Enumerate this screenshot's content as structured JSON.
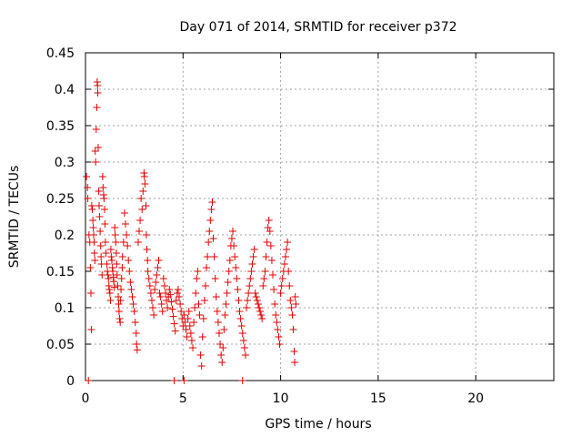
{
  "chart_data": {
    "type": "scatter",
    "title": "Day 071 of 2014, SRMTID for receiver p372",
    "xlabel": "GPS time / hours",
    "ylabel": "SRMTID / TECUs",
    "xlim": [
      0,
      24
    ],
    "ylim": [
      0,
      0.45
    ],
    "xticks": [
      0,
      5,
      10,
      15,
      20
    ],
    "yticks": [
      0,
      0.05,
      0.1,
      0.15,
      0.2,
      0.25,
      0.3,
      0.35,
      0.4,
      0.45
    ],
    "grid": true,
    "marker": "+",
    "color": "#e60000",
    "series": [
      {
        "name": "SRMTID",
        "points": [
          [
            0.05,
            0.28
          ],
          [
            0.1,
            0.265
          ],
          [
            0.12,
            0.25
          ],
          [
            0.18,
            0.2
          ],
          [
            0.22,
            0.19
          ],
          [
            0.25,
            0.155
          ],
          [
            0.28,
            0.12
          ],
          [
            0.3,
            0.07
          ],
          [
            0.32,
            0.24
          ],
          [
            0.35,
            0.235
          ],
          [
            0.38,
            0.22
          ],
          [
            0.4,
            0.21
          ],
          [
            0.42,
            0.2
          ],
          [
            0.44,
            0.19
          ],
          [
            0.46,
            0.175
          ],
          [
            0.48,
            0.165
          ],
          [
            0.5,
            0.315
          ],
          [
            0.52,
            0.3
          ],
          [
            0.55,
            0.345
          ],
          [
            0.58,
            0.375
          ],
          [
            0.6,
            0.41
          ],
          [
            0.62,
            0.405
          ],
          [
            0.63,
            0.395
          ],
          [
            0.65,
            0.32
          ],
          [
            0.68,
            0.26
          ],
          [
            0.7,
            0.24
          ],
          [
            0.72,
            0.225
          ],
          [
            0.75,
            0.205
          ],
          [
            0.78,
            0.185
          ],
          [
            0.8,
            0.17
          ],
          [
            0.82,
            0.16
          ],
          [
            0.85,
            0.145
          ],
          [
            0.88,
            0.28
          ],
          [
            0.9,
            0.265
          ],
          [
            0.93,
            0.255
          ],
          [
            0.95,
            0.25
          ],
          [
            0.98,
            0.235
          ],
          [
            1.0,
            0.215
          ],
          [
            1.02,
            0.19
          ],
          [
            1.05,
            0.175
          ],
          [
            1.1,
            0.16
          ],
          [
            1.12,
            0.15
          ],
          [
            1.15,
            0.145
          ],
          [
            1.18,
            0.14
          ],
          [
            1.2,
            0.13
          ],
          [
            1.22,
            0.125
          ],
          [
            1.25,
            0.12
          ],
          [
            1.28,
            0.11
          ],
          [
            1.3,
            0.18
          ],
          [
            1.32,
            0.17
          ],
          [
            1.35,
            0.165
          ],
          [
            1.38,
            0.155
          ],
          [
            1.4,
            0.15
          ],
          [
            1.42,
            0.142
          ],
          [
            1.45,
            0.136
          ],
          [
            1.48,
            0.128
          ],
          [
            1.5,
            0.21
          ],
          [
            1.52,
            0.2
          ],
          [
            1.55,
            0.19
          ],
          [
            1.58,
            0.175
          ],
          [
            1.6,
            0.16
          ],
          [
            1.62,
            0.145
          ],
          [
            1.65,
            0.13
          ],
          [
            1.68,
            0.115
          ],
          [
            1.7,
            0.105
          ],
          [
            1.72,
            0.095
          ],
          [
            1.75,
            0.085
          ],
          [
            1.78,
            0.08
          ],
          [
            1.8,
            0.11
          ],
          [
            1.82,
            0.125
          ],
          [
            1.85,
            0.14
          ],
          [
            1.88,
            0.155
          ],
          [
            1.9,
            0.17
          ],
          [
            1.95,
            0.19
          ],
          [
            2.0,
            0.23
          ],
          [
            2.05,
            0.215
          ],
          [
            2.1,
            0.2
          ],
          [
            2.15,
            0.185
          ],
          [
            2.2,
            0.165
          ],
          [
            2.25,
            0.15
          ],
          [
            2.3,
            0.135
          ],
          [
            2.35,
            0.125
          ],
          [
            2.4,
            0.115
          ],
          [
            2.45,
            0.105
          ],
          [
            2.5,
            0.095
          ],
          [
            2.55,
            0.08
          ],
          [
            2.6,
            0.065
          ],
          [
            2.62,
            0.05
          ],
          [
            2.65,
            0.042
          ],
          [
            2.7,
            0.19
          ],
          [
            2.75,
            0.205
          ],
          [
            2.8,
            0.22
          ],
          [
            2.85,
            0.25
          ],
          [
            2.9,
            0.235
          ],
          [
            2.95,
            0.26
          ],
          [
            3.0,
            0.285
          ],
          [
            3.02,
            0.28
          ],
          [
            3.05,
            0.27
          ],
          [
            3.1,
            0.24
          ],
          [
            3.12,
            0.2
          ],
          [
            3.15,
            0.18
          ],
          [
            3.18,
            0.165
          ],
          [
            3.2,
            0.15
          ],
          [
            3.25,
            0.14
          ],
          [
            3.3,
            0.13
          ],
          [
            3.35,
            0.12
          ],
          [
            3.4,
            0.11
          ],
          [
            3.45,
            0.1
          ],
          [
            3.5,
            0.09
          ],
          [
            3.55,
            0.125
          ],
          [
            3.6,
            0.135
          ],
          [
            3.65,
            0.145
          ],
          [
            3.7,
            0.155
          ],
          [
            3.75,
            0.165
          ],
          [
            3.8,
            0.12
          ],
          [
            3.85,
            0.115
          ],
          [
            3.9,
            0.105
          ],
          [
            3.95,
            0.095
          ],
          [
            4.0,
            0.14
          ],
          [
            4.05,
            0.13
          ],
          [
            4.1,
            0.12
          ],
          [
            4.15,
            0.11
          ],
          [
            4.2,
            0.1
          ],
          [
            4.25,
            0.115
          ],
          [
            4.3,
            0.125
          ],
          [
            4.35,
            0.118
          ],
          [
            4.4,
            0.108
          ],
          [
            4.45,
            0.098
          ],
          [
            4.5,
            0.088
          ],
          [
            4.55,
            0.078
          ],
          [
            4.6,
            0.068
          ],
          [
            4.65,
            0.11
          ],
          [
            4.7,
            0.12
          ],
          [
            4.75,
            0.125
          ],
          [
            4.8,
            0.115
          ],
          [
            4.85,
            0.105
          ],
          [
            4.9,
            0.095
          ],
          [
            4.95,
            0.085
          ],
          [
            5.0,
            0.075
          ],
          [
            5.05,
            0.09
          ],
          [
            5.1,
            0.08
          ],
          [
            5.15,
            0.07
          ],
          [
            5.2,
            0.06
          ],
          [
            5.25,
            0.085
          ],
          [
            5.3,
            0.095
          ],
          [
            5.35,
            0.075
          ],
          [
            5.4,
            0.065
          ],
          [
            5.45,
            0.055
          ],
          [
            5.5,
            0.045
          ],
          [
            5.55,
            0.08
          ],
          [
            5.6,
            0.1
          ],
          [
            5.65,
            0.12
          ],
          [
            5.7,
            0.14
          ],
          [
            5.75,
            0.15
          ],
          [
            5.8,
            0.105
          ],
          [
            5.85,
            0.09
          ],
          [
            5.9,
            0.035
          ],
          [
            5.95,
            0.02
          ],
          [
            6.0,
            0.06
          ],
          [
            6.05,
            0.085
          ],
          [
            6.1,
            0.11
          ],
          [
            6.15,
            0.13
          ],
          [
            6.2,
            0.155
          ],
          [
            6.25,
            0.17
          ],
          [
            6.3,
            0.19
          ],
          [
            6.35,
            0.205
          ],
          [
            6.4,
            0.22
          ],
          [
            6.45,
            0.235
          ],
          [
            6.5,
            0.245
          ],
          [
            6.55,
            0.195
          ],
          [
            6.6,
            0.17
          ],
          [
            6.65,
            0.14
          ],
          [
            6.7,
            0.115
          ],
          [
            6.75,
            0.095
          ],
          [
            6.8,
            0.08
          ],
          [
            6.85,
            0.065
          ],
          [
            6.9,
            0.05
          ],
          [
            6.95,
            0.035
          ],
          [
            7.0,
            0.025
          ],
          [
            7.05,
            0.045
          ],
          [
            7.1,
            0.07
          ],
          [
            7.15,
            0.09
          ],
          [
            7.2,
            0.105
          ],
          [
            7.25,
            0.12
          ],
          [
            7.3,
            0.135
          ],
          [
            7.35,
            0.15
          ],
          [
            7.4,
            0.165
          ],
          [
            7.45,
            0.185
          ],
          [
            7.5,
            0.195
          ],
          [
            7.55,
            0.205
          ],
          [
            7.6,
            0.185
          ],
          [
            7.65,
            0.17
          ],
          [
            7.7,
            0.155
          ],
          [
            7.75,
            0.14
          ],
          [
            7.8,
            0.125
          ],
          [
            7.85,
            0.11
          ],
          [
            7.9,
            0.095
          ],
          [
            7.95,
            0.085
          ],
          [
            8.0,
            0.075
          ],
          [
            8.05,
            0.065
          ],
          [
            8.1,
            0.055
          ],
          [
            8.15,
            0.045
          ],
          [
            8.2,
            0.035
          ],
          [
            8.25,
            0.1
          ],
          [
            8.3,
            0.11
          ],
          [
            8.35,
            0.12
          ],
          [
            8.4,
            0.13
          ],
          [
            8.45,
            0.14
          ],
          [
            8.5,
            0.15
          ],
          [
            8.55,
            0.16
          ],
          [
            8.6,
            0.17
          ],
          [
            8.65,
            0.18
          ],
          [
            8.7,
            0.12
          ],
          [
            8.75,
            0.115
          ],
          [
            8.8,
            0.11
          ],
          [
            8.85,
            0.105
          ],
          [
            8.9,
            0.1
          ],
          [
            8.95,
            0.095
          ],
          [
            9.0,
            0.09
          ],
          [
            9.05,
            0.085
          ],
          [
            9.1,
            0.13
          ],
          [
            9.15,
            0.14
          ],
          [
            9.2,
            0.15
          ],
          [
            9.25,
            0.17
          ],
          [
            9.3,
            0.19
          ],
          [
            9.35,
            0.21
          ],
          [
            9.4,
            0.22
          ],
          [
            9.45,
            0.205
          ],
          [
            9.5,
            0.185
          ],
          [
            9.55,
            0.165
          ],
          [
            9.6,
            0.145
          ],
          [
            9.65,
            0.125
          ],
          [
            9.7,
            0.105
          ],
          [
            9.75,
            0.09
          ],
          [
            9.8,
            0.08
          ],
          [
            9.85,
            0.07
          ],
          [
            9.9,
            0.06
          ],
          [
            9.95,
            0.05
          ],
          [
            10.0,
            0.12
          ],
          [
            10.05,
            0.13
          ],
          [
            10.1,
            0.14
          ],
          [
            10.15,
            0.15
          ],
          [
            10.2,
            0.16
          ],
          [
            10.25,
            0.17
          ],
          [
            10.3,
            0.18
          ],
          [
            10.35,
            0.19
          ],
          [
            10.4,
            0.15
          ],
          [
            10.45,
            0.13
          ],
          [
            10.5,
            0.11
          ],
          [
            10.55,
            0.1
          ],
          [
            10.6,
            0.09
          ],
          [
            10.65,
            0.07
          ],
          [
            10.7,
            0.04
          ],
          [
            10.72,
            0.025
          ],
          [
            10.75,
            0.115
          ],
          [
            10.78,
            0.105
          ],
          [
            0.15,
            0.0
          ],
          [
            4.55,
            0.0
          ],
          [
            5.05,
            0.0
          ],
          [
            8.05,
            0.0
          ]
        ]
      }
    ]
  }
}
